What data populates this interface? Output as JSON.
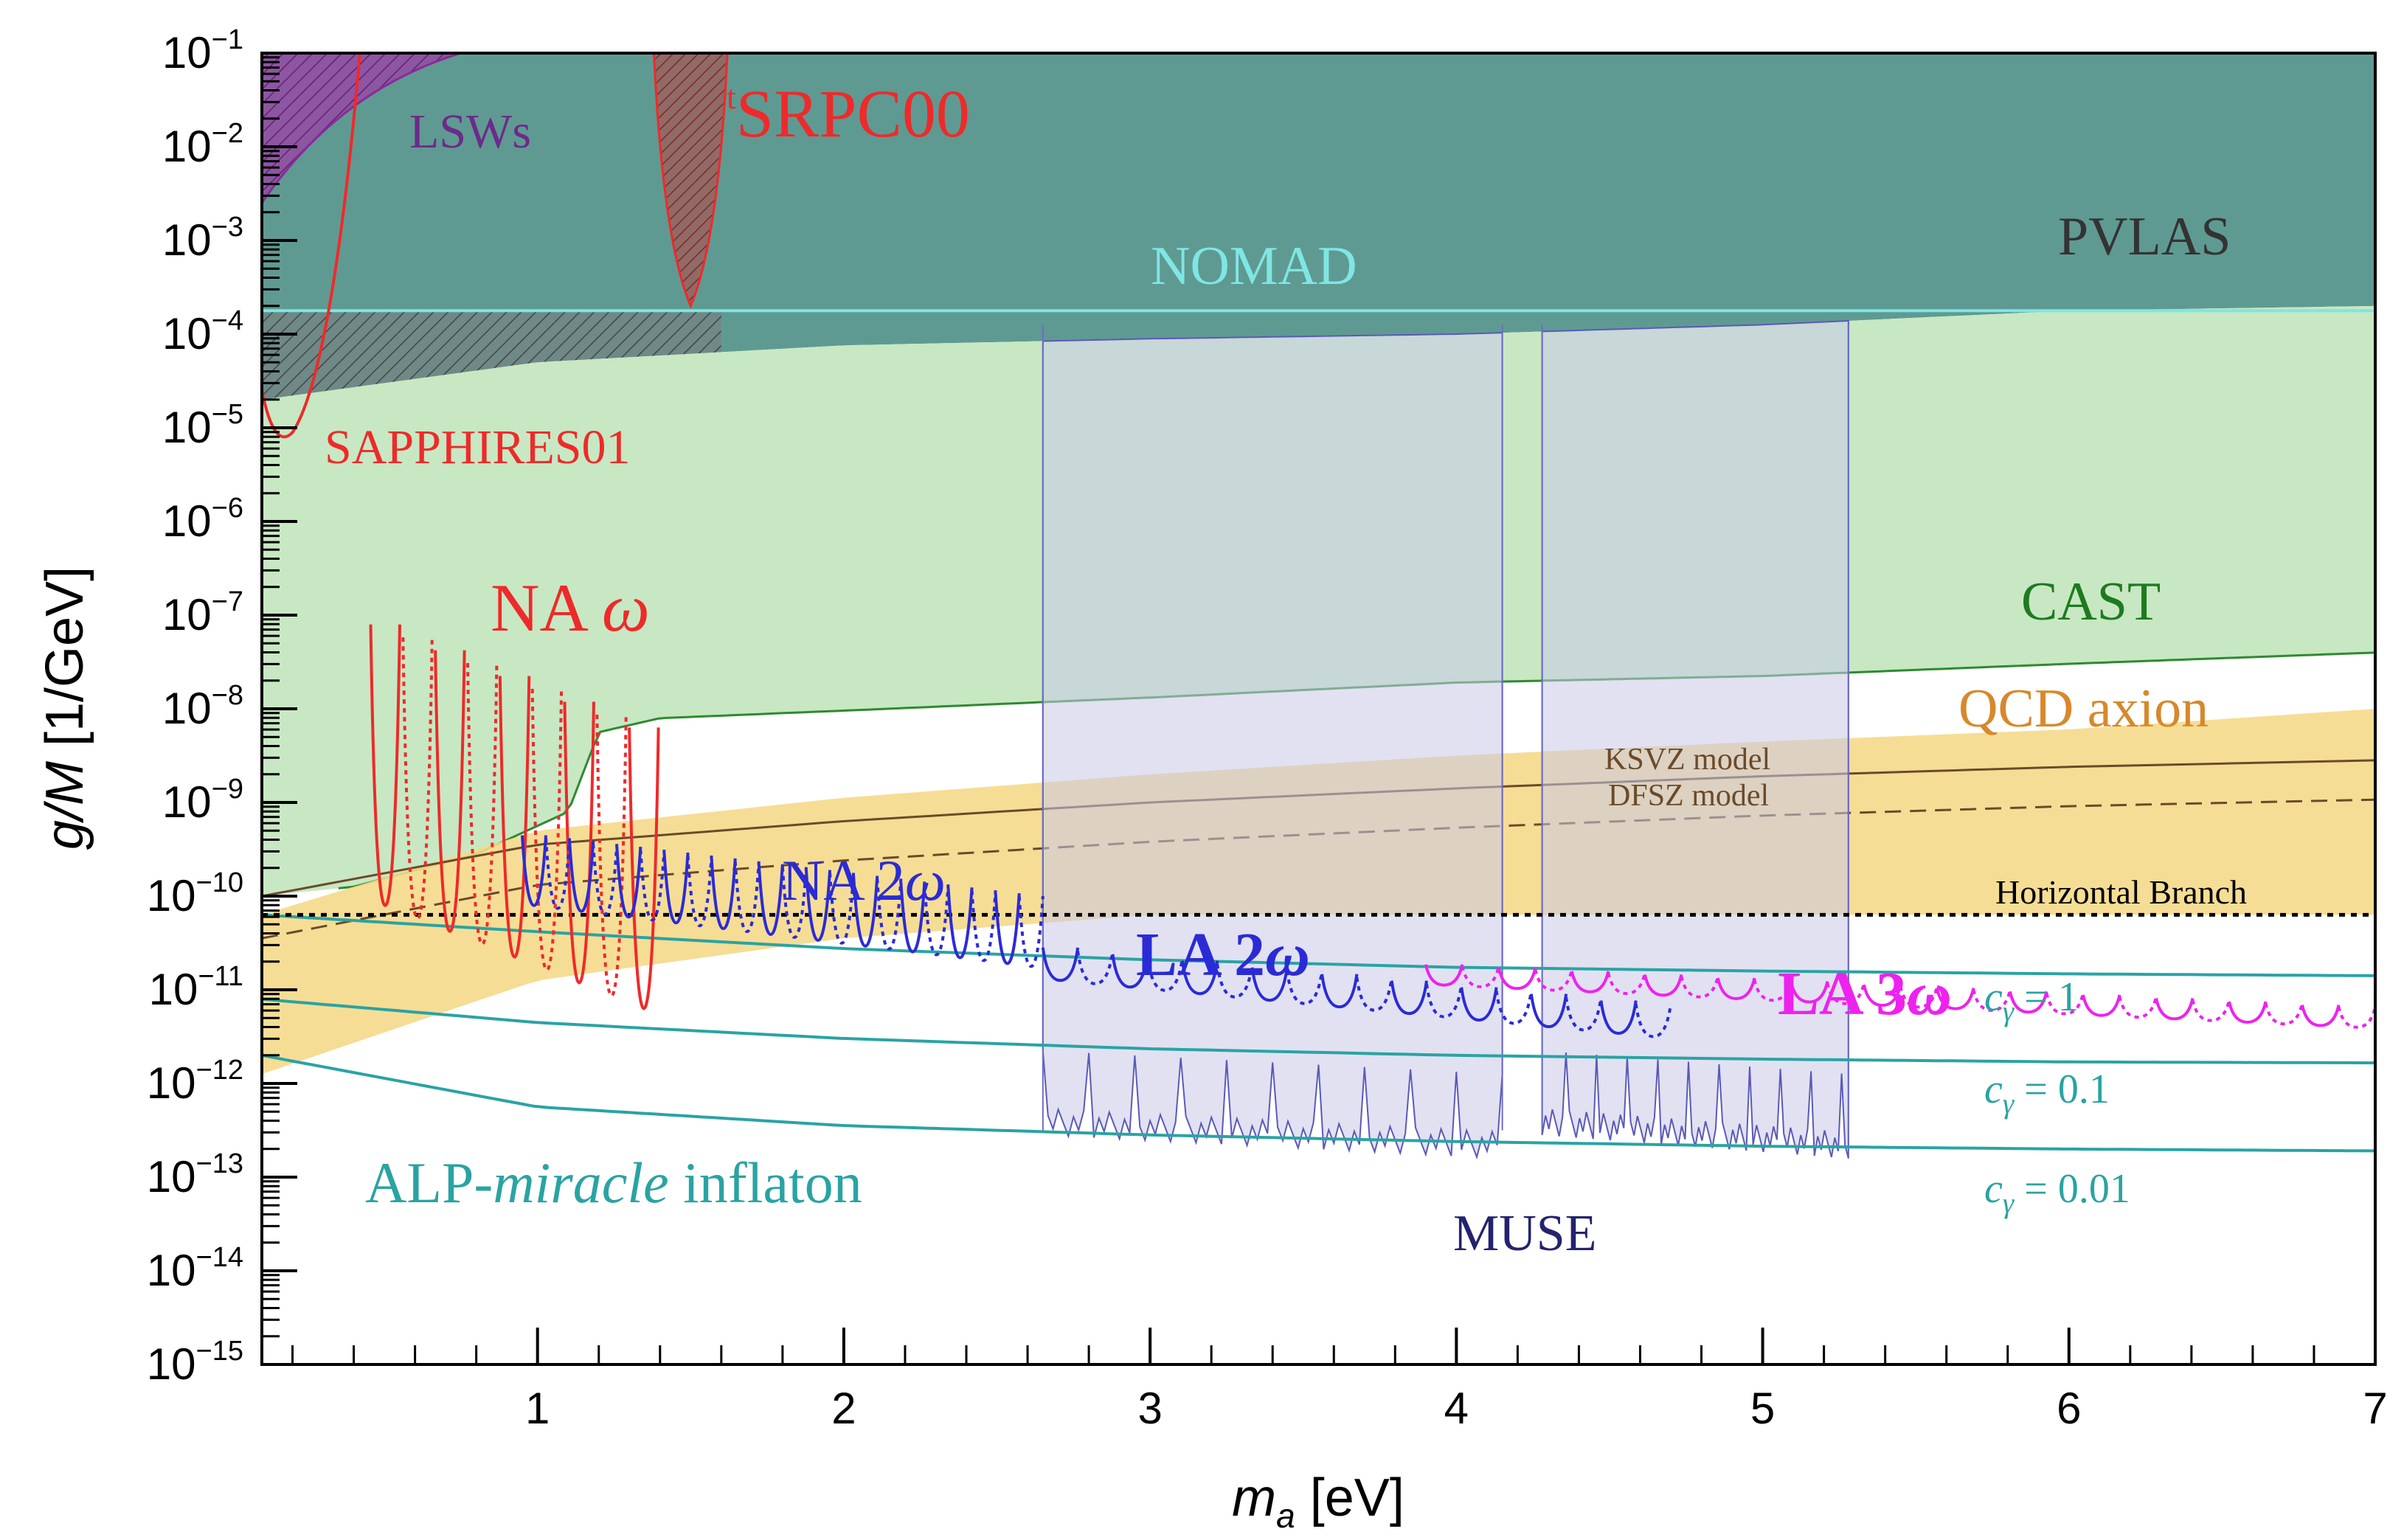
{
  "chart_data": {
    "type": "exclusion-limits",
    "xlabel": "m_a [eV]",
    "xlabel_var": "m",
    "xlabel_sub": "a",
    "xlabel_unit": " [eV]",
    "ylabel": "g/M [1/GeV]",
    "ylabel_var": "g/M",
    "ylabel_unit": " [1/GeV]",
    "xlim": [
      0.1,
      7
    ],
    "ylim_log10": [
      -15,
      -1
    ],
    "x_ticks": [
      1,
      2,
      3,
      4,
      5,
      6,
      7
    ],
    "y_ticks": [
      {
        "exp": -1,
        "label": "10",
        "sup": "−1"
      },
      {
        "exp": -2,
        "label": "10",
        "sup": "−2"
      },
      {
        "exp": -3,
        "label": "10",
        "sup": "−3"
      },
      {
        "exp": -4,
        "label": "10",
        "sup": "−4"
      },
      {
        "exp": -5,
        "label": "10",
        "sup": "−5"
      },
      {
        "exp": -6,
        "label": "10",
        "sup": "−6"
      },
      {
        "exp": -7,
        "label": "10",
        "sup": "−7"
      },
      {
        "exp": -8,
        "label": "10",
        "sup": "−8"
      },
      {
        "exp": -9,
        "label": "10",
        "sup": "−9"
      },
      {
        "exp": -10,
        "label": "10",
        "sup": "−10"
      },
      {
        "exp": -11,
        "label": "10",
        "sup": "−11"
      },
      {
        "exp": -12,
        "label": "10",
        "sup": "−12"
      },
      {
        "exp": -13,
        "label": "10",
        "sup": "−13"
      },
      {
        "exp": -14,
        "label": "10",
        "sup": "−14"
      },
      {
        "exp": -15,
        "label": "10",
        "sup": "−15"
      }
    ],
    "regions": [
      {
        "name": "PVLAS",
        "fill": "#5f9a92",
        "boundary": [
          [
            0.1,
            -4.7
          ],
          [
            1,
            -4.3
          ],
          [
            2,
            -4.12
          ],
          [
            3,
            -4.05
          ],
          [
            4,
            -4.0
          ],
          [
            5,
            -3.9
          ],
          [
            6,
            -3.75
          ],
          [
            7,
            -3.7
          ]
        ]
      },
      {
        "name": "NOMAD",
        "level_log10": -3.75,
        "color": "#7fe6e3"
      },
      {
        "name": "CAST",
        "fill": "#c7e8c3",
        "boundary": [
          [
            0.1,
            -10.0
          ],
          [
            0.4,
            -9.9
          ],
          [
            0.8,
            -9.55
          ],
          [
            1.1,
            -9.1
          ],
          [
            1.2,
            -8.25
          ],
          [
            1.4,
            -8.1
          ],
          [
            2,
            -8.02
          ],
          [
            3,
            -7.88
          ],
          [
            4,
            -7.72
          ],
          [
            5,
            -7.65
          ],
          [
            6,
            -7.52
          ],
          [
            7,
            -7.4
          ]
        ]
      },
      {
        "name": "QCD axion band",
        "fill": "#f5d98a"
      },
      {
        "name": "MUSE",
        "fill": "#c9c9e8",
        "x_ranges": [
          [
            2.65,
            4.15
          ],
          [
            4.28,
            5.28
          ]
        ]
      },
      {
        "name": "tSRPC00",
        "x_range": [
          1.38,
          1.62
        ],
        "tip_log10": -3.7
      },
      {
        "name": "LSWs",
        "fill": "#9a3fa5"
      },
      {
        "name": "SAPPHIRES01",
        "min_at_eV": 0.15,
        "min_log10": -5.0
      }
    ],
    "lines": [
      {
        "name": "KSVZ model",
        "points": [
          [
            0.1,
            -10.0
          ],
          [
            1,
            -9.45
          ],
          [
            2,
            -9.2
          ],
          [
            3,
            -9.0
          ],
          [
            4,
            -8.85
          ],
          [
            5,
            -8.72
          ],
          [
            6,
            -8.62
          ],
          [
            7,
            -8.55
          ]
        ]
      },
      {
        "name": "DFSZ model",
        "dashed": true,
        "points": [
          [
            0.1,
            -10.45
          ],
          [
            1,
            -9.88
          ],
          [
            2,
            -9.62
          ],
          [
            3,
            -9.42
          ],
          [
            4,
            -9.27
          ],
          [
            5,
            -9.14
          ],
          [
            6,
            -9.04
          ],
          [
            7,
            -8.97
          ]
        ]
      },
      {
        "name": "Horizontal Branch",
        "level_log10": -10.2
      },
      {
        "name": "c_γ = 1",
        "points": [
          [
            0.1,
            -10.2
          ],
          [
            1,
            -10.38
          ],
          [
            2,
            -10.56
          ],
          [
            3,
            -10.68
          ],
          [
            4,
            -10.76
          ],
          [
            5,
            -10.8
          ],
          [
            6,
            -10.83
          ],
          [
            7,
            -10.85
          ]
        ]
      },
      {
        "name": "c_γ = 0.1",
        "points": [
          [
            0.1,
            -11.1
          ],
          [
            1,
            -11.35
          ],
          [
            2,
            -11.52
          ],
          [
            3,
            -11.63
          ],
          [
            4,
            -11.7
          ],
          [
            5,
            -11.74
          ],
          [
            6,
            -11.77
          ],
          [
            7,
            -11.78
          ]
        ]
      },
      {
        "name": "c_γ = 0.01",
        "points": [
          [
            0.1,
            -11.7
          ],
          [
            1,
            -12.25
          ],
          [
            2,
            -12.45
          ],
          [
            3,
            -12.55
          ],
          [
            4,
            -12.62
          ],
          [
            5,
            -12.67
          ],
          [
            6,
            -12.7
          ],
          [
            7,
            -12.72
          ]
        ]
      }
    ],
    "series_resonances": [
      {
        "name": "NA ω",
        "color": "#ee2a2a",
        "x_range": [
          0.45,
          1.4
        ],
        "min_log10": [
          -10.1,
          -11.2
        ],
        "n": 9
      },
      {
        "name": "NA 2ω",
        "color": "#2b2bd6",
        "x_range": [
          0.95,
          2.65
        ],
        "min_log10": [
          -10.1,
          -10.75
        ],
        "n": 22
      },
      {
        "name": "LA 2ω",
        "color": "#2b2bd6",
        "x_range": [
          2.65,
          4.7
        ],
        "min_log10": [
          -10.9,
          -11.5
        ],
        "n": 18
      },
      {
        "name": "LA 3ω",
        "color": "#ee22ee",
        "x_range": [
          3.9,
          7.0
        ],
        "min_log10": [
          -10.95,
          -11.4
        ],
        "n": 26
      }
    ],
    "annotations": [
      {
        "text": "LSWs",
        "color": "#6d2a8a"
      },
      {
        "text_sup": "t",
        "text": "SRPC00",
        "color": "#ee2a2a"
      },
      {
        "text": "NOMAD",
        "color": "#7fe6e3"
      },
      {
        "text": "PVLAS",
        "color": "#333333"
      },
      {
        "text": "SAPPHIRES01",
        "color": "#ee2a2a"
      },
      {
        "text": "NA ",
        "greek": "ω",
        "color": "#ee2a2a"
      },
      {
        "text": "CAST",
        "color": "#1f7a1f"
      },
      {
        "text": "QCD axion",
        "color": "#d7882b"
      },
      {
        "text": "KSVZ model",
        "color": "#6b4a2a"
      },
      {
        "text": "DFSZ model",
        "color": "#6b4a2a"
      },
      {
        "text": "NA 2",
        "greek": "ω",
        "color": "#2b2bd6"
      },
      {
        "text": "Horizontal Branch",
        "color": "#000000"
      },
      {
        "text": "LA 2",
        "greek": "ω",
        "color": "#2b2bd6"
      },
      {
        "text": "LA 3",
        "greek": "ω",
        "color": "#ee22ee"
      },
      {
        "text_c": "c",
        "text_sub": "γ",
        "text": " =  1",
        "color": "#2aa3a3"
      },
      {
        "text_c": "c",
        "text_sub": "γ",
        "text": " =  0.1",
        "color": "#2aa3a3"
      },
      {
        "text_c": "c",
        "text_sub": "γ",
        "text": " = 0.01",
        "color": "#2aa3a3"
      },
      {
        "text": "ALP-",
        "italic": "miracle",
        "text2": " inflaton",
        "color": "#2aa3a3"
      },
      {
        "text": "MUSE",
        "color": "#23236e"
      }
    ]
  }
}
